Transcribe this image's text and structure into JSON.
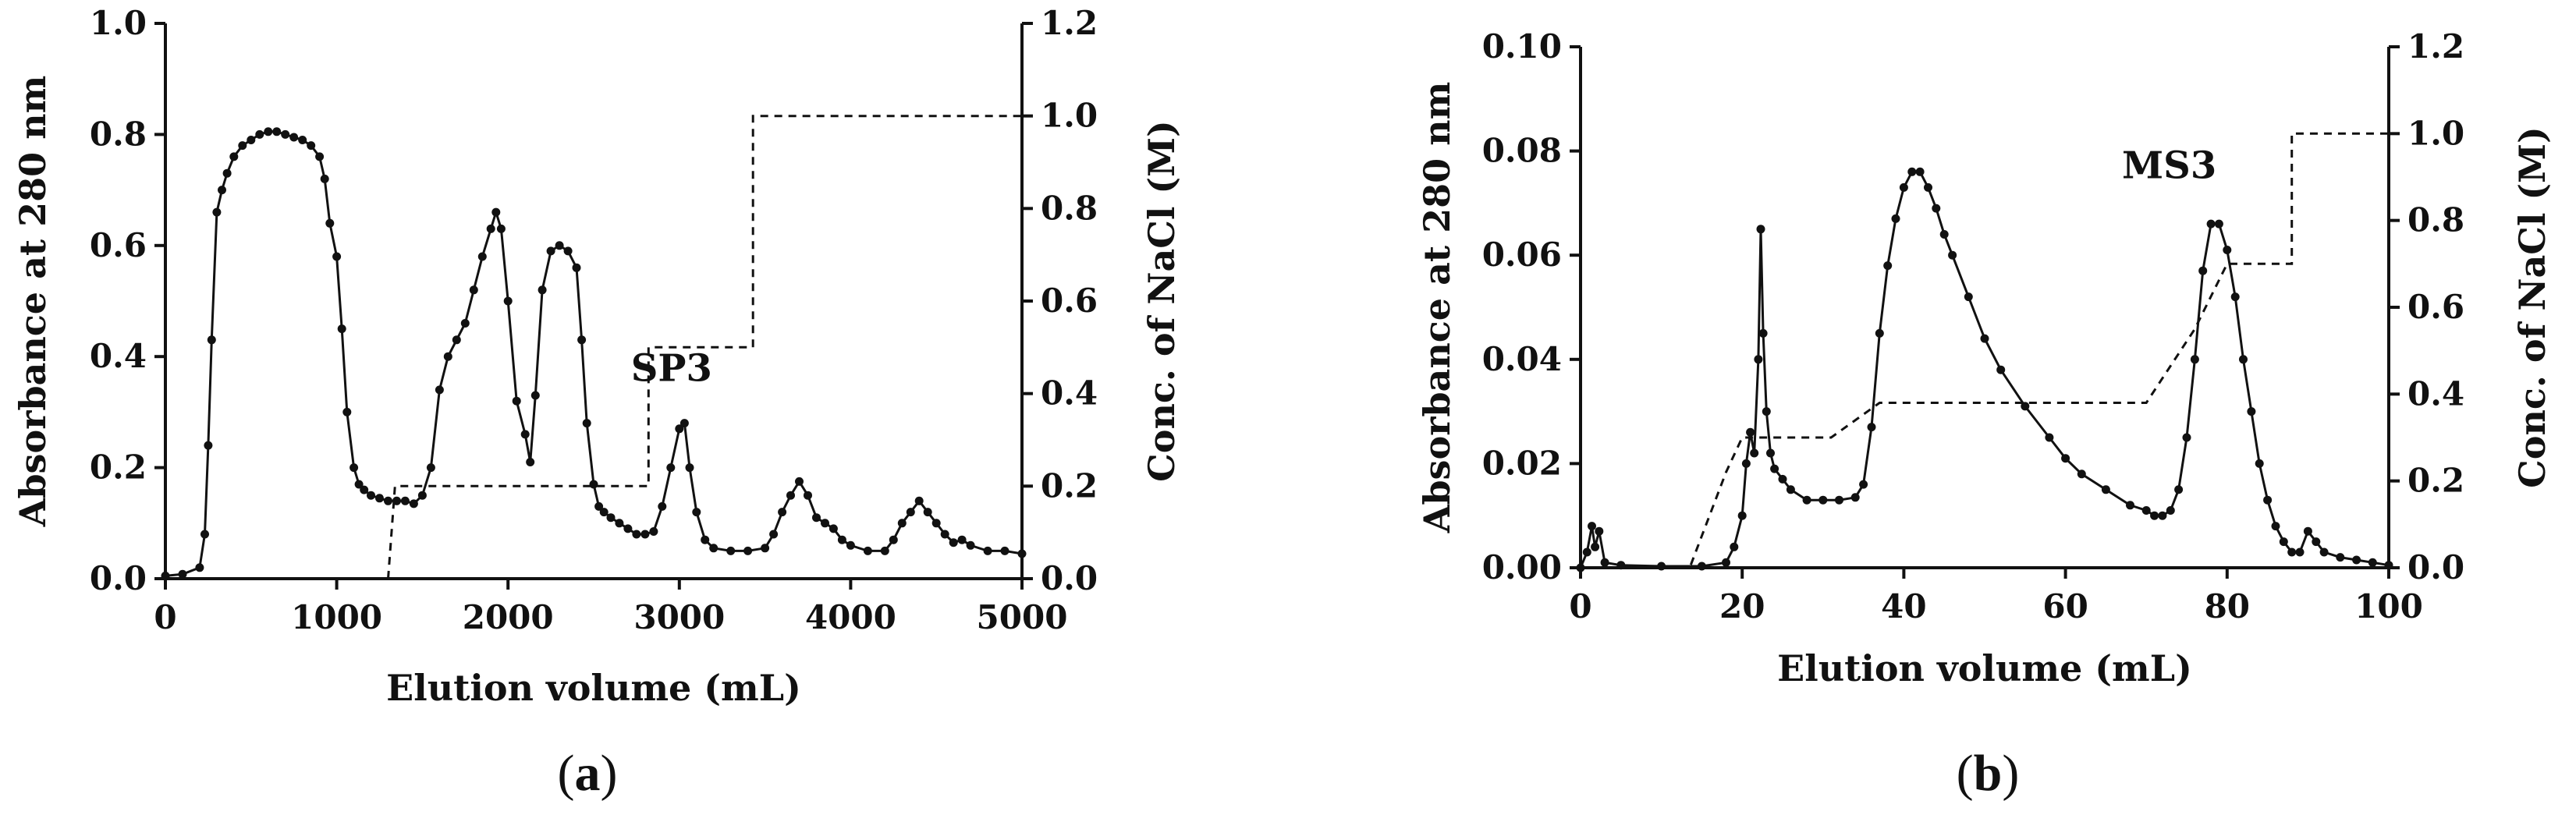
{
  "figure": {
    "panels": [
      {
        "label_open": "(",
        "label_letter": "a",
        "label_close": ")"
      },
      {
        "label_open": "(",
        "label_letter": "b",
        "label_close": ")"
      }
    ]
  },
  "chart_data": [
    {
      "type": "line",
      "xlabel": "Elution volume (mL)",
      "ylabel": "Absorbance at 280 nm",
      "y2label": "Conc. of NaCl (M)",
      "xlim": [
        0,
        5000
      ],
      "ylim": [
        0,
        1.0
      ],
      "y2lim": [
        0,
        1.2
      ],
      "xticks": [
        "0",
        "1000",
        "2000",
        "3000",
        "4000",
        "5000"
      ],
      "yticks": [
        "0.0",
        "0.2",
        "0.4",
        "0.6",
        "0.8",
        "1.0"
      ],
      "y2ticks": [
        "0.0",
        "0.2",
        "0.4",
        "0.6",
        "0.8",
        "1.0",
        "1.2"
      ],
      "annotations": [
        {
          "text": "SP3",
          "x": 3000,
          "y": 0.3
        }
      ],
      "series": [
        {
          "axis": "left",
          "style": "solid-with-markers",
          "x": [
            0,
            100,
            200,
            230,
            250,
            270,
            300,
            330,
            360,
            400,
            450,
            500,
            550,
            600,
            650,
            700,
            750,
            800,
            850,
            900,
            930,
            960,
            1000,
            1030,
            1060,
            1100,
            1130,
            1160,
            1200,
            1250,
            1300,
            1350,
            1400,
            1450,
            1500,
            1550,
            1600,
            1650,
            1700,
            1750,
            1800,
            1850,
            1900,
            1930,
            1960,
            2000,
            2050,
            2100,
            2130,
            2160,
            2200,
            2250,
            2300,
            2350,
            2400,
            2430,
            2460,
            2500,
            2530,
            2560,
            2600,
            2650,
            2700,
            2750,
            2800,
            2850,
            2900,
            2950,
            3000,
            3030,
            3060,
            3100,
            3150,
            3200,
            3300,
            3400,
            3500,
            3550,
            3600,
            3650,
            3700,
            3750,
            3800,
            3850,
            3900,
            3950,
            4000,
            4100,
            4200,
            4250,
            4300,
            4350,
            4400,
            4450,
            4500,
            4550,
            4600,
            4650,
            4700,
            4800,
            4900,
            5000
          ],
          "values": [
            0.005,
            0.008,
            0.02,
            0.08,
            0.24,
            0.43,
            0.66,
            0.7,
            0.73,
            0.76,
            0.78,
            0.79,
            0.8,
            0.805,
            0.805,
            0.8,
            0.795,
            0.79,
            0.78,
            0.76,
            0.72,
            0.64,
            0.58,
            0.45,
            0.3,
            0.2,
            0.17,
            0.16,
            0.15,
            0.145,
            0.14,
            0.14,
            0.14,
            0.135,
            0.15,
            0.2,
            0.34,
            0.4,
            0.43,
            0.46,
            0.52,
            0.58,
            0.63,
            0.66,
            0.63,
            0.5,
            0.32,
            0.26,
            0.21,
            0.33,
            0.52,
            0.59,
            0.6,
            0.59,
            0.56,
            0.43,
            0.28,
            0.17,
            0.13,
            0.12,
            0.11,
            0.1,
            0.09,
            0.08,
            0.08,
            0.085,
            0.13,
            0.2,
            0.27,
            0.28,
            0.2,
            0.12,
            0.07,
            0.055,
            0.05,
            0.05,
            0.055,
            0.08,
            0.12,
            0.15,
            0.175,
            0.15,
            0.11,
            0.1,
            0.09,
            0.07,
            0.06,
            0.05,
            0.05,
            0.07,
            0.1,
            0.12,
            0.14,
            0.12,
            0.1,
            0.08,
            0.065,
            0.07,
            0.06,
            0.05,
            0.05,
            0.045
          ]
        },
        {
          "axis": "right",
          "style": "dashed",
          "x": [
            1300,
            1340,
            1340,
            2820,
            2820,
            3430,
            3430,
            5000
          ],
          "values": [
            0.0,
            0.2,
            0.2,
            0.2,
            0.5,
            0.5,
            1.0,
            1.0
          ]
        }
      ]
    },
    {
      "type": "line",
      "xlabel": "Elution volume (mL)",
      "ylabel": "Absorbance at 280 nm",
      "y2label": "Conc. of NaCl (M)",
      "xlim": [
        0,
        100
      ],
      "ylim": [
        0,
        0.1
      ],
      "y2lim": [
        0,
        1.2
      ],
      "xticks": [
        "0",
        "20",
        "40",
        "60",
        "80",
        "100"
      ],
      "yticks": [
        "0.00",
        "0.02",
        "0.04",
        "0.06",
        "0.08",
        "0.10"
      ],
      "y2ticks": [
        "0.0",
        "0.2",
        "0.4",
        "0.6",
        "0.8",
        "1.0",
        "1.2"
      ],
      "annotations": [
        {
          "text": "MS3",
          "x": 74,
          "y": 0.07
        }
      ],
      "series": [
        {
          "axis": "left",
          "style": "solid-with-markers",
          "x": [
            0,
            0.8,
            1.4,
            1.8,
            2.3,
            3,
            5,
            10,
            15,
            18,
            19,
            20,
            20.5,
            21,
            21.5,
            22,
            22.3,
            22.6,
            23,
            23.5,
            24,
            25,
            26,
            28,
            30,
            32,
            34,
            35,
            36,
            37,
            38,
            39,
            40,
            41,
            42,
            43,
            44,
            45,
            46,
            48,
            50,
            52,
            55,
            58,
            60,
            62,
            65,
            68,
            70,
            71,
            72,
            73,
            74,
            75,
            76,
            77,
            78,
            79,
            80,
            81,
            82,
            83,
            84,
            85,
            86,
            87,
            88,
            89,
            90,
            91,
            92,
            94,
            96,
            98,
            100
          ],
          "values": [
            0.0,
            0.003,
            0.008,
            0.004,
            0.007,
            0.001,
            0.0005,
            0.0003,
            0.0003,
            0.001,
            0.004,
            0.01,
            0.02,
            0.026,
            0.022,
            0.04,
            0.065,
            0.045,
            0.03,
            0.022,
            0.019,
            0.017,
            0.015,
            0.013,
            0.013,
            0.013,
            0.0135,
            0.016,
            0.027,
            0.045,
            0.058,
            0.067,
            0.073,
            0.076,
            0.076,
            0.073,
            0.069,
            0.064,
            0.06,
            0.052,
            0.044,
            0.038,
            0.031,
            0.025,
            0.021,
            0.018,
            0.015,
            0.012,
            0.011,
            0.01,
            0.01,
            0.011,
            0.015,
            0.025,
            0.04,
            0.057,
            0.066,
            0.066,
            0.061,
            0.052,
            0.04,
            0.03,
            0.02,
            0.013,
            0.008,
            0.005,
            0.003,
            0.003,
            0.007,
            0.005,
            0.003,
            0.002,
            0.0015,
            0.001,
            0.0005
          ]
        },
        {
          "axis": "right",
          "style": "dashed",
          "x": [
            0,
            13.5,
            18,
            20,
            31,
            37,
            70,
            76,
            80,
            82,
            88,
            88,
            100
          ],
          "values": [
            0.0,
            0.0,
            0.22,
            0.3,
            0.3,
            0.38,
            0.38,
            0.55,
            0.7,
            0.7,
            0.7,
            1.0,
            1.0
          ]
        }
      ]
    }
  ]
}
